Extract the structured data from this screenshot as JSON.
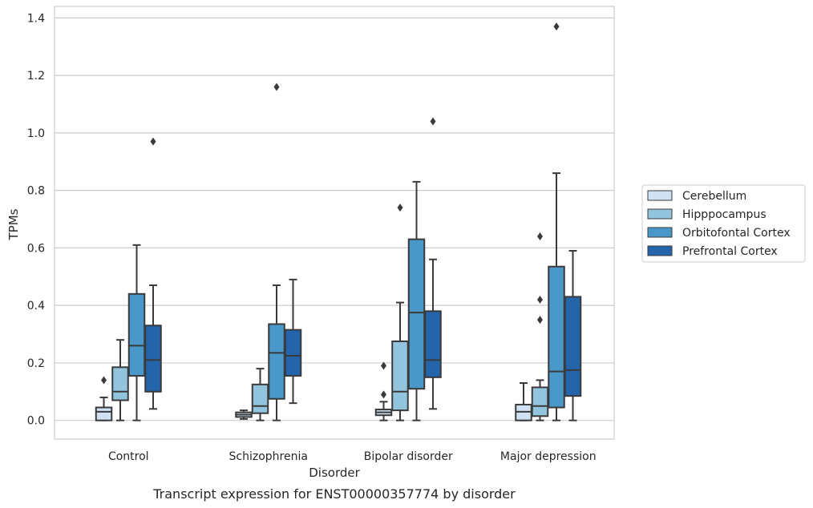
{
  "chart_data": {
    "type": "box",
    "title": "",
    "caption": "Transcript expression for ENST00000357774 by disorder",
    "xlabel": "Disorder",
    "ylabel": "TPMs",
    "ylim": [
      -0.065,
      1.44
    ],
    "yticks": [
      "0.0",
      "0.2",
      "0.4",
      "0.6",
      "0.8",
      "1.0",
      "1.2",
      "1.4"
    ],
    "grid": true,
    "legend_position": "right",
    "categories": [
      "Control",
      "Schizophrenia",
      "Bipolar disorder",
      "Major depression"
    ],
    "series": [
      {
        "name": "Cerebellum",
        "color": "#cfe1f2",
        "boxes": [
          {
            "whisker_low": 0.0,
            "q1": 0.0,
            "median": 0.03,
            "q3": 0.045,
            "whisker_high": 0.08,
            "outliers": [
              0.14
            ]
          },
          {
            "whisker_low": 0.005,
            "q1": 0.012,
            "median": 0.02,
            "q3": 0.028,
            "whisker_high": 0.035,
            "outliers": []
          },
          {
            "whisker_low": 0.0,
            "q1": 0.018,
            "median": 0.028,
            "q3": 0.038,
            "whisker_high": 0.065,
            "outliers": [
              0.09,
              0.19
            ]
          },
          {
            "whisker_low": 0.0,
            "q1": 0.0,
            "median": 0.03,
            "q3": 0.055,
            "whisker_high": 0.13,
            "outliers": []
          }
        ]
      },
      {
        "name": "Hipppocampus",
        "color": "#93c4de",
        "boxes": [
          {
            "whisker_low": 0.0,
            "q1": 0.07,
            "median": 0.1,
            "q3": 0.185,
            "whisker_high": 0.28,
            "outliers": []
          },
          {
            "whisker_low": 0.0,
            "q1": 0.025,
            "median": 0.05,
            "q3": 0.125,
            "whisker_high": 0.18,
            "outliers": []
          },
          {
            "whisker_low": 0.0,
            "q1": 0.035,
            "median": 0.1,
            "q3": 0.275,
            "whisker_high": 0.41,
            "outliers": [
              0.74
            ]
          },
          {
            "whisker_low": 0.0,
            "q1": 0.015,
            "median": 0.05,
            "q3": 0.115,
            "whisker_high": 0.14,
            "outliers": [
              0.35,
              0.42,
              0.64
            ]
          }
        ]
      },
      {
        "name": "Orbitofontal Cortex",
        "color": "#4a98c9",
        "boxes": [
          {
            "whisker_low": 0.0,
            "q1": 0.155,
            "median": 0.26,
            "q3": 0.44,
            "whisker_high": 0.61,
            "outliers": []
          },
          {
            "whisker_low": 0.0,
            "q1": 0.075,
            "median": 0.235,
            "q3": 0.335,
            "whisker_high": 0.47,
            "outliers": [
              1.16
            ]
          },
          {
            "whisker_low": 0.0,
            "q1": 0.11,
            "median": 0.375,
            "q3": 0.63,
            "whisker_high": 0.83,
            "outliers": []
          },
          {
            "whisker_low": 0.0,
            "q1": 0.045,
            "median": 0.17,
            "q3": 0.535,
            "whisker_high": 0.86,
            "outliers": [
              1.37
            ]
          }
        ]
      },
      {
        "name": "Prefrontal Cortex",
        "color": "#2364aa",
        "boxes": [
          {
            "whisker_low": 0.04,
            "q1": 0.1,
            "median": 0.21,
            "q3": 0.33,
            "whisker_high": 0.47,
            "outliers": [
              0.97
            ]
          },
          {
            "whisker_low": 0.06,
            "q1": 0.155,
            "median": 0.225,
            "q3": 0.315,
            "whisker_high": 0.49,
            "outliers": []
          },
          {
            "whisker_low": 0.04,
            "q1": 0.15,
            "median": 0.21,
            "q3": 0.38,
            "whisker_high": 0.56,
            "outliers": [
              1.04
            ]
          },
          {
            "whisker_low": 0.0,
            "q1": 0.085,
            "median": 0.175,
            "q3": 0.43,
            "whisker_high": 0.59,
            "outliers": []
          }
        ]
      }
    ]
  }
}
